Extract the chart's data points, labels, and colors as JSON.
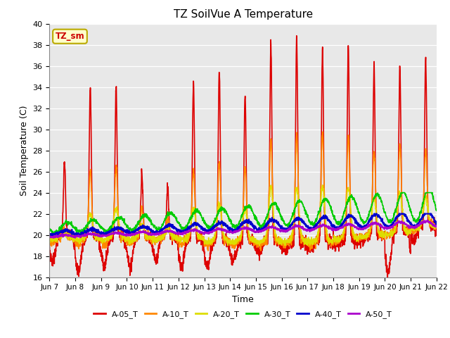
{
  "title": "TZ SoilVue A Temperature",
  "ylabel": "Soil Temperature (C)",
  "xlabel": "Time",
  "ylim": [
    16,
    40
  ],
  "yticks": [
    16,
    18,
    20,
    22,
    24,
    26,
    28,
    30,
    32,
    34,
    36,
    38,
    40
  ],
  "xtick_labels": [
    "Jun 7",
    "Jun 8",
    "Jun 9",
    "Jun 10",
    "Jun 11",
    "Jun 12",
    "Jun 13",
    "Jun 14",
    "Jun 15",
    "Jun 16",
    "Jun 17",
    "Jun 18",
    "Jun 19",
    "Jun 20",
    "Jun 21",
    "Jun 22"
  ],
  "bg_color": "#e8e8e8",
  "fig_color": "#ffffff",
  "annotation_text": "TZ_sm",
  "annotation_bg": "#ffffcc",
  "annotation_border": "#bbaa00",
  "series": {
    "A-05_T": {
      "color": "#dd0000",
      "lw": 1.2
    },
    "A-10_T": {
      "color": "#ff8800",
      "lw": 1.2
    },
    "A-20_T": {
      "color": "#dddd00",
      "lw": 1.2
    },
    "A-30_T": {
      "color": "#00cc00",
      "lw": 1.2
    },
    "A-40_T": {
      "color": "#0000cc",
      "lw": 1.5
    },
    "A-50_T": {
      "color": "#aa00cc",
      "lw": 1.5
    }
  },
  "legend_order": [
    "A-05_T",
    "A-10_T",
    "A-20_T",
    "A-30_T",
    "A-40_T",
    "A-50_T"
  ]
}
